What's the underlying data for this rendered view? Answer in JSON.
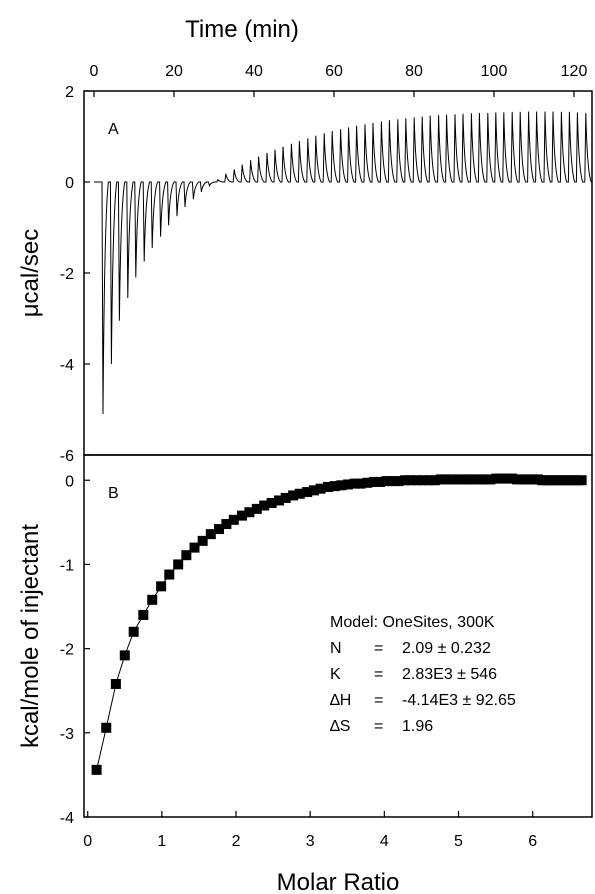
{
  "chart_data": [
    {
      "panel_label": "A",
      "type": "line",
      "xlabel": "Time (min)",
      "ylabel": "μcal/sec",
      "xlim": [
        -2.5,
        124.5
      ],
      "ylim": [
        -6,
        2
      ],
      "x_ticks": [
        "0",
        "20",
        "40",
        "60",
        "80",
        "100",
        "120"
      ],
      "y_ticks": [
        "2",
        "0",
        "-2",
        "-4",
        "-6"
      ],
      "injection_times_min": [
        2.0,
        4.1,
        6.1,
        8.2,
        10.2,
        12.3,
        14.3,
        16.4,
        18.4,
        20.5,
        22.5,
        24.6,
        26.6,
        28.6,
        30.7,
        32.7,
        34.8,
        36.8,
        38.9,
        40.9,
        43.0,
        45.0,
        47.0,
        49.1,
        51.1,
        53.2,
        55.2,
        57.3,
        59.3,
        61.4,
        63.4,
        65.4,
        67.5,
        69.5,
        71.6,
        73.6,
        75.7,
        77.7,
        79.8,
        81.8,
        83.8,
        85.9,
        87.9,
        90.0,
        92.0,
        94.1,
        96.1,
        98.2,
        100.2,
        102.2,
        104.3,
        106.3,
        108.4,
        110.4,
        112.5,
        114.5,
        116.6,
        118.6,
        120.6,
        122.7
      ],
      "peak_heights_ucal_per_sec": [
        -5.1,
        -4.0,
        -3.05,
        -2.55,
        -2.1,
        -1.75,
        -1.45,
        -1.2,
        -0.95,
        -0.75,
        -0.55,
        -0.38,
        -0.22,
        -0.08,
        0.05,
        0.18,
        0.28,
        0.38,
        0.48,
        0.56,
        0.64,
        0.71,
        0.78,
        0.84,
        0.9,
        0.96,
        1.02,
        1.07,
        1.12,
        1.16,
        1.2,
        1.24,
        1.27,
        1.3,
        1.33,
        1.36,
        1.38,
        1.4,
        1.42,
        1.44,
        1.46,
        1.47,
        1.48,
        1.49,
        1.5,
        1.51,
        1.52,
        1.52,
        1.53,
        1.53,
        1.54,
        1.54,
        1.55,
        1.55,
        1.55,
        1.55,
        1.54,
        1.54,
        1.53,
        1.52
      ]
    },
    {
      "panel_label": "B",
      "type": "scatter",
      "xlabel": "Molar Ratio",
      "ylabel": "kcal/mole of injectant",
      "xlim": [
        -0.05,
        6.8
      ],
      "ylim": [
        -4,
        0.3
      ],
      "x_ticks": [
        "0",
        "1",
        "2",
        "3",
        "4",
        "5",
        "6"
      ],
      "y_ticks": [
        "0",
        "-1",
        "-2",
        "-3",
        "-4"
      ],
      "x": [
        0.12,
        0.25,
        0.38,
        0.5,
        0.62,
        0.75,
        0.87,
        0.99,
        1.1,
        1.22,
        1.33,
        1.44,
        1.55,
        1.66,
        1.77,
        1.87,
        1.97,
        2.08,
        2.18,
        2.28,
        2.38,
        2.48,
        2.58,
        2.67,
        2.77,
        2.86,
        2.96,
        3.05,
        3.14,
        3.24,
        3.33,
        3.42,
        3.51,
        3.6,
        3.68,
        3.77,
        3.86,
        3.94,
        4.03,
        4.11,
        4.19,
        4.28,
        4.36,
        4.44,
        4.52,
        4.6,
        4.68,
        4.76,
        4.83,
        4.91,
        4.99,
        5.06,
        5.14,
        5.21,
        5.29,
        5.36,
        5.43,
        5.51,
        5.58,
        5.65,
        5.72,
        5.79,
        5.86,
        5.93,
        6.0,
        6.07,
        6.13,
        6.2,
        6.27,
        6.33,
        6.4,
        6.46,
        6.53,
        6.59,
        6.66
      ],
      "y": [
        -3.44,
        -2.94,
        -2.42,
        -2.08,
        -1.8,
        -1.6,
        -1.42,
        -1.26,
        -1.12,
        -1.0,
        -0.89,
        -0.8,
        -0.72,
        -0.64,
        -0.58,
        -0.52,
        -0.47,
        -0.42,
        -0.38,
        -0.34,
        -0.3,
        -0.27,
        -0.24,
        -0.21,
        -0.18,
        -0.16,
        -0.14,
        -0.12,
        -0.1,
        -0.08,
        -0.07,
        -0.06,
        -0.05,
        -0.04,
        -0.04,
        -0.03,
        -0.02,
        -0.02,
        -0.01,
        -0.01,
        -0.01,
        0.0,
        0.0,
        0.0,
        0.0,
        0.0,
        0.0,
        0.01,
        0.01,
        0.01,
        0.01,
        0.01,
        0.01,
        0.01,
        0.01,
        0.01,
        0.01,
        0.02,
        0.02,
        0.02,
        0.02,
        0.01,
        0.01,
        0.01,
        0.01,
        0.01,
        0.0,
        0.0,
        0.0,
        0.0,
        0.0,
        0.0,
        0.0,
        0.0,
        0.0
      ],
      "fit_line": true,
      "annotation": {
        "model": "Model: OneSites, 300K",
        "rows": [
          {
            "label": "N",
            "eq": "=",
            "value": "2.09 ± 0.232"
          },
          {
            "label": "K",
            "eq": "=",
            "value": "2.83E3 ± 546"
          },
          {
            "label": "∆H",
            "eq": "=",
            "value": "-4.14E3 ± 92.65"
          },
          {
            "label": "∆S",
            "eq": "=",
            "value": "1.96"
          }
        ]
      }
    }
  ]
}
